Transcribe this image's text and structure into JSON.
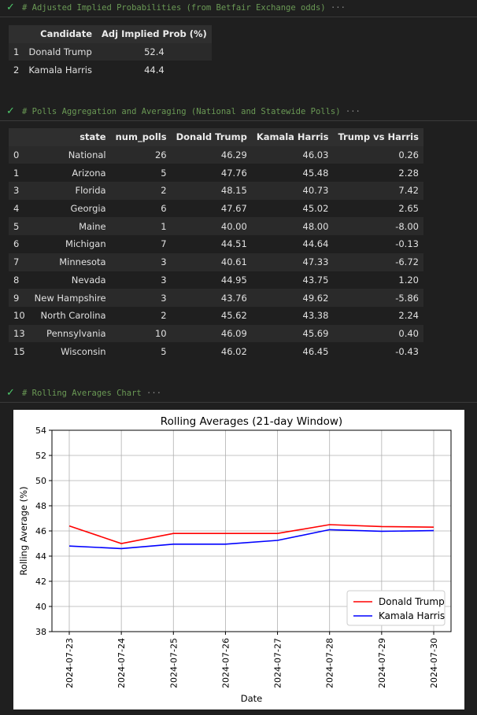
{
  "cells": [
    {
      "code": "# Adjusted Implied Probabilities (from Betfair Exchange odds)",
      "ellipsis": "···"
    },
    {
      "code": "# Polls Aggregation and Averaging (National and Statewide Polls)",
      "ellipsis": "···"
    },
    {
      "code": "# Rolling Averages Chart",
      "ellipsis": "···"
    }
  ],
  "prob_table": {
    "headers": [
      "",
      "Candidate",
      "Adj Implied Prob (%)"
    ],
    "rows": [
      {
        "idx": "1",
        "candidate": "Donald Trump",
        "prob": "52.4"
      },
      {
        "idx": "2",
        "candidate": "Kamala Harris",
        "prob": "44.4"
      }
    ]
  },
  "polls_table": {
    "headers": [
      "",
      "state",
      "num_polls",
      "Donald Trump",
      "Kamala Harris",
      "Trump vs Harris"
    ],
    "rows": [
      {
        "idx": "0",
        "state": "National",
        "num": "26",
        "trump": "46.29",
        "harris": "46.03",
        "diff": "0.26"
      },
      {
        "idx": "1",
        "state": "Arizona",
        "num": "5",
        "trump": "47.76",
        "harris": "45.48",
        "diff": "2.28"
      },
      {
        "idx": "3",
        "state": "Florida",
        "num": "2",
        "trump": "48.15",
        "harris": "40.73",
        "diff": "7.42"
      },
      {
        "idx": "4",
        "state": "Georgia",
        "num": "6",
        "trump": "47.67",
        "harris": "45.02",
        "diff": "2.65"
      },
      {
        "idx": "5",
        "state": "Maine",
        "num": "1",
        "trump": "40.00",
        "harris": "48.00",
        "diff": "-8.00"
      },
      {
        "idx": "6",
        "state": "Michigan",
        "num": "7",
        "trump": "44.51",
        "harris": "44.64",
        "diff": "-0.13"
      },
      {
        "idx": "7",
        "state": "Minnesota",
        "num": "3",
        "trump": "40.61",
        "harris": "47.33",
        "diff": "-6.72"
      },
      {
        "idx": "8",
        "state": "Nevada",
        "num": "3",
        "trump": "44.95",
        "harris": "43.75",
        "diff": "1.20"
      },
      {
        "idx": "9",
        "state": "New Hampshire",
        "num": "3",
        "trump": "43.76",
        "harris": "49.62",
        "diff": "-5.86"
      },
      {
        "idx": "10",
        "state": "North Carolina",
        "num": "2",
        "trump": "45.62",
        "harris": "43.38",
        "diff": "2.24"
      },
      {
        "idx": "13",
        "state": "Pennsylvania",
        "num": "10",
        "trump": "46.09",
        "harris": "45.69",
        "diff": "0.40"
      },
      {
        "idx": "15",
        "state": "Wisconsin",
        "num": "5",
        "trump": "46.02",
        "harris": "46.45",
        "diff": "-0.43"
      }
    ]
  },
  "colors": {
    "check": "#4ec96b",
    "comment": "#6a9955",
    "trump": "#ff0000",
    "harris": "#0000ff"
  },
  "chart_data": {
    "type": "line",
    "title": "Rolling Averages (21-day Window)",
    "xlabel": "Date",
    "ylabel": "Rolling Average (%)",
    "x": [
      "2024-07-23",
      "2024-07-24",
      "2024-07-25",
      "2024-07-26",
      "2024-07-27",
      "2024-07-28",
      "2024-07-29",
      "2024-07-30"
    ],
    "ylim": [
      38,
      54
    ],
    "yticks": [
      38,
      40,
      42,
      44,
      46,
      48,
      50,
      52,
      54
    ],
    "grid": true,
    "legend": "lower-right",
    "series": [
      {
        "name": "Donald Trump",
        "color": "#ff0000",
        "values": [
          46.4,
          45.0,
          45.8,
          45.8,
          45.8,
          46.5,
          46.35,
          46.3
        ]
      },
      {
        "name": "Kamala Harris",
        "color": "#0000ff",
        "values": [
          44.8,
          44.6,
          44.95,
          44.95,
          45.25,
          46.1,
          45.97,
          46.03
        ]
      }
    ]
  }
}
